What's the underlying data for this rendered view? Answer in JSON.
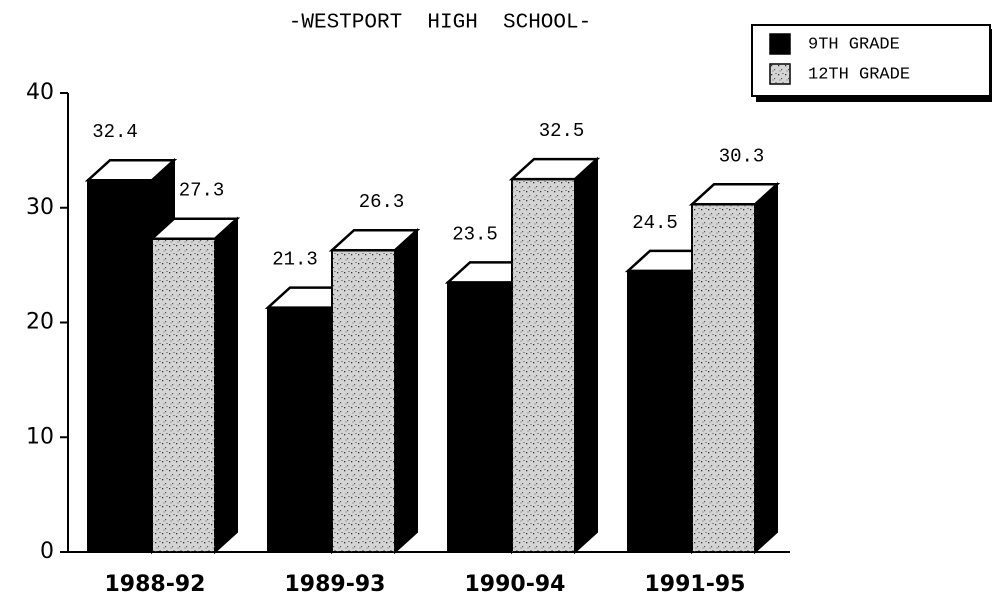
{
  "chart_data": {
    "type": "bar3d",
    "title": "-WESTPORT  HIGH  SCHOOL-",
    "categories": [
      "1988-92",
      "1989-93",
      "1990-94",
      "1991-95"
    ],
    "series": [
      {
        "name": "9TH GRADE",
        "color": "#000000",
        "values": [
          32.4,
          21.3,
          23.5,
          24.5
        ]
      },
      {
        "name": "12TH GRADE",
        "color": "#d4d4d4",
        "values": [
          27.3,
          26.3,
          32.5,
          30.3
        ]
      }
    ],
    "ylim": [
      0,
      40
    ],
    "yticks": [
      0,
      10,
      20,
      30,
      40
    ],
    "legend": "top-right"
  }
}
